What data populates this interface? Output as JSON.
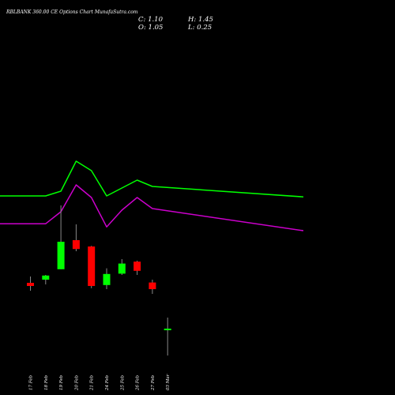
{
  "header": {
    "title": "RBLBANK 360.00 CE Options Chart MunafaSutra.com",
    "close": "C: 1.10",
    "open": "O: 1.05",
    "high": "H: 1.45",
    "low": "L: 0.25"
  },
  "colors": {
    "background": "#000000",
    "up": "#00ff00",
    "down": "#ff0000",
    "line1": "#00ff00",
    "line2": "#cc00cc",
    "wick": "#888888",
    "text": "#ffffff"
  },
  "chart_data": {
    "type": "candlestick",
    "categories": [
      "17 Feb",
      "18 Feb",
      "19 Feb",
      "20 Feb",
      "21 Feb",
      "24 Feb",
      "25 Feb",
      "26 Feb",
      "27 Feb",
      "03 Mar"
    ],
    "tick_labels": [
      "17 Feb",
      "18 Feb",
      "19 Feb",
      "20 Feb",
      "21 Feb",
      "24 Feb",
      "25 Feb",
      "26 Feb",
      "27 Feb",
      "03 Mar"
    ],
    "candles": [
      {
        "o": 2.55,
        "h": 2.75,
        "l": 2.3,
        "c": 2.45
      },
      {
        "o": 2.65,
        "h": 2.8,
        "l": 2.5,
        "c": 2.78
      },
      {
        "o": 2.98,
        "h": 5.0,
        "l": 2.98,
        "c": 3.85
      },
      {
        "o": 3.9,
        "h": 4.4,
        "l": 3.55,
        "c": 3.62
      },
      {
        "o": 3.7,
        "h": 3.72,
        "l": 2.38,
        "c": 2.45
      },
      {
        "o": 2.48,
        "h": 3.01,
        "l": 2.35,
        "c": 2.83
      },
      {
        "o": 2.84,
        "h": 3.3,
        "l": 2.8,
        "c": 3.16
      },
      {
        "o": 3.22,
        "h": 3.25,
        "l": 2.8,
        "c": 2.93
      },
      {
        "o": 2.56,
        "h": 2.65,
        "l": 2.2,
        "c": 2.35
      },
      {
        "o": 1.05,
        "h": 1.45,
        "l": 0.25,
        "c": 1.1
      }
    ],
    "lines": [
      {
        "values": [
          5.3,
          5.3,
          5.45,
          6.4,
          6.1,
          5.3,
          5.55,
          5.8,
          5.6,
          5.27
        ]
      },
      {
        "values": [
          4.42,
          4.42,
          4.8,
          5.65,
          5.25,
          4.32,
          4.85,
          5.25,
          4.9,
          4.2
        ]
      }
    ],
    "ylim": [
      0,
      10.5
    ]
  }
}
